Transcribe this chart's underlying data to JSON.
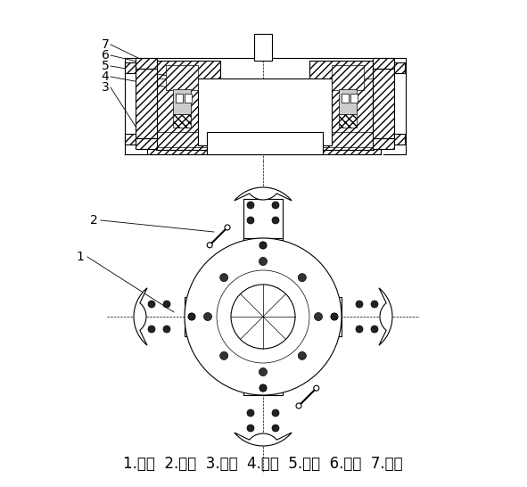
{
  "bg_color": "#ffffff",
  "line_color": "#000000",
  "caption": "1.托盘  2.手柄  3.底座  4.转环  5.销钉  6.滑块  7.抱爪",
  "caption_fontsize": 12,
  "label_fontsize": 10,
  "fig_width": 5.91,
  "fig_height": 5.46,
  "dpi": 100
}
